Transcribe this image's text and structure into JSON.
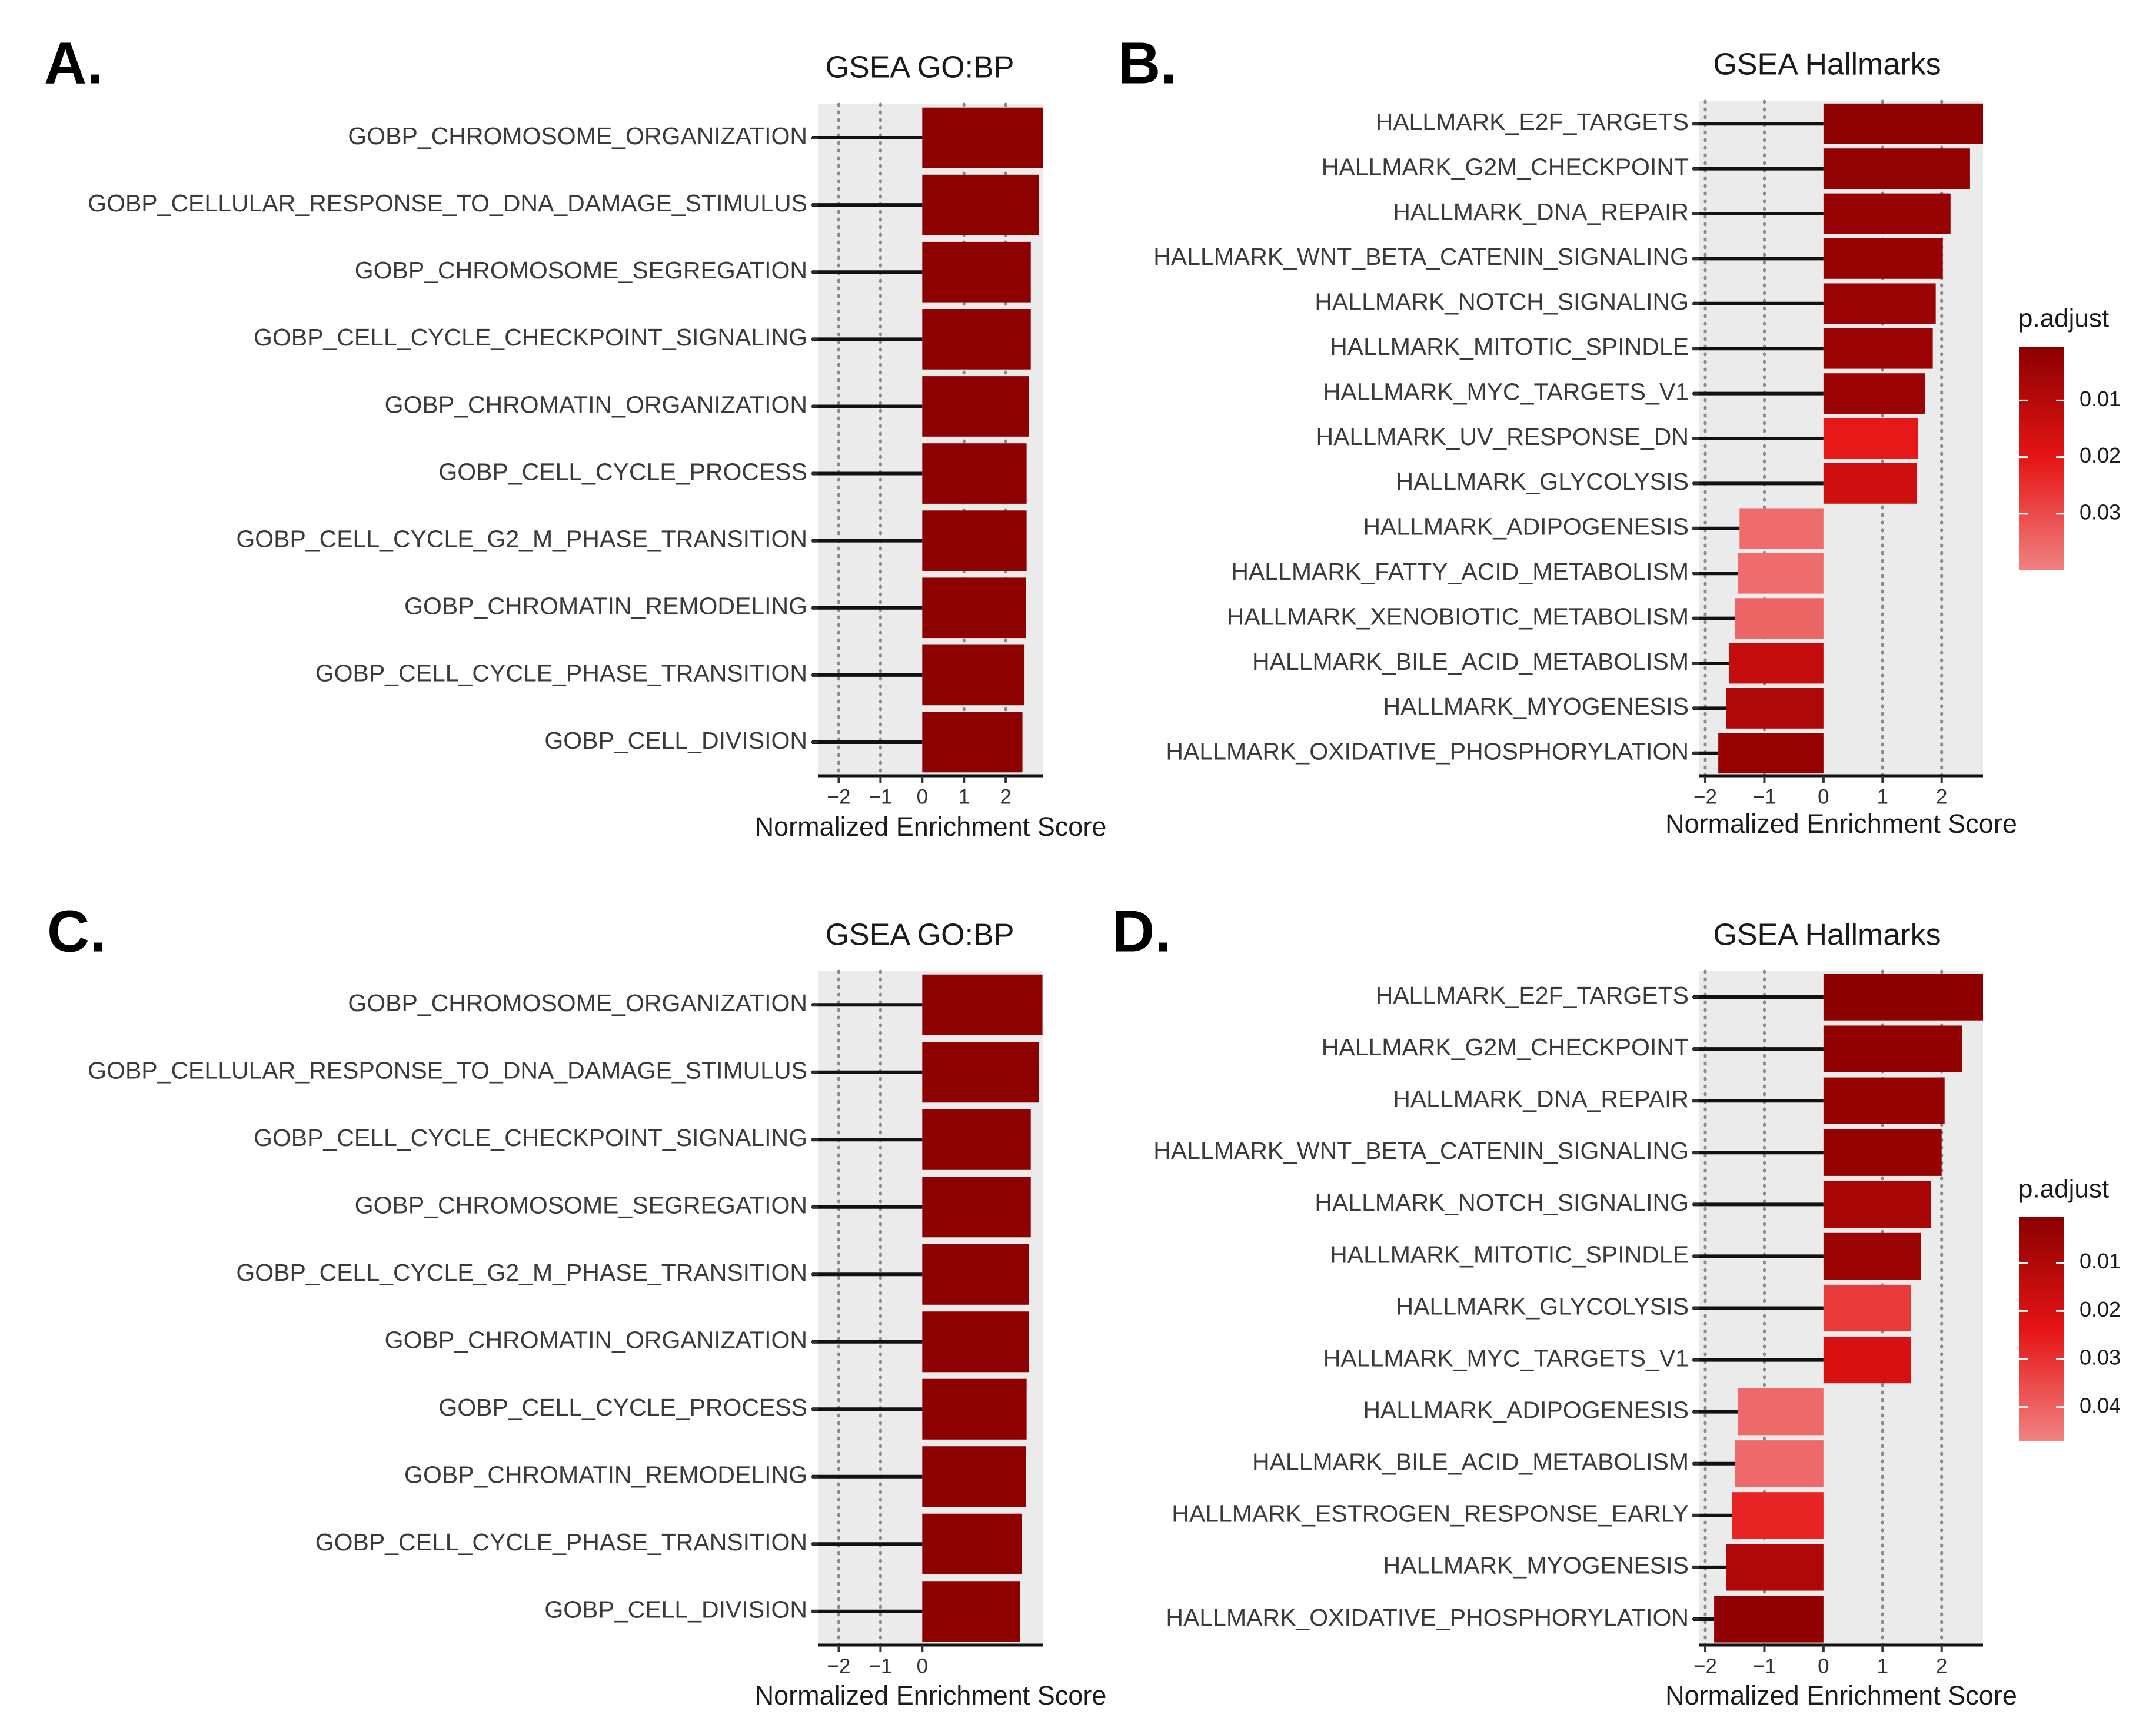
{
  "x_axis_label": "Normalized Enrichment Score",
  "legend_title": "p.adjust",
  "chart_data": [
    {
      "panel": "A.",
      "type": "bar",
      "orientation": "horizontal",
      "title": "GSEA GO:BP",
      "xlabel": "Normalized Enrichment Score",
      "xlim": [
        -2.5,
        2.9
      ],
      "xticks": [
        -2,
        -1,
        0,
        1,
        2
      ],
      "xtick_labels": [
        "−2",
        "−1",
        "0",
        "1",
        "2"
      ],
      "categories": [
        "GOBP_CHROMOSOME_ORGANIZATION",
        "GOBP_CELLULAR_RESPONSE_TO_DNA_DAMAGE_STIMULUS",
        "GOBP_CHROMOSOME_SEGREGATION",
        "GOBP_CELL_CYCLE_CHECKPOINT_SIGNALING",
        "GOBP_CHROMATIN_ORGANIZATION",
        "GOBP_CELL_CYCLE_PROCESS",
        "GOBP_CELL_CYCLE_G2_M_PHASE_TRANSITION",
        "GOBP_CHROMATIN_REMODELING",
        "GOBP_CELL_CYCLE_PHASE_TRANSITION",
        "GOBP_CELL_DIVISION"
      ],
      "values": [
        2.9,
        2.8,
        2.6,
        2.6,
        2.55,
        2.5,
        2.5,
        2.48,
        2.45,
        2.4
      ],
      "p_adjust": [
        0.001,
        0.001,
        0.001,
        0.001,
        0.001,
        0.001,
        0.001,
        0.001,
        0.001,
        0.001
      ]
    },
    {
      "panel": "B.",
      "type": "bar",
      "orientation": "horizontal",
      "title": "GSEA Hallmarks",
      "xlabel": "Normalized Enrichment Score",
      "xlim": [
        -2.1,
        2.7
      ],
      "xticks": [
        -2,
        -1,
        0,
        1,
        2
      ],
      "xtick_labels": [
        "−2",
        "−1",
        "0",
        "1",
        "2"
      ],
      "categories": [
        "HALLMARK_E2F_TARGETS",
        "HALLMARK_G2M_CHECKPOINT",
        "HALLMARK_DNA_REPAIR",
        "HALLMARK_WNT_BETA_CATENIN_SIGNALING",
        "HALLMARK_NOTCH_SIGNALING",
        "HALLMARK_MITOTIC_SPINDLE",
        "HALLMARK_MYC_TARGETS_V1",
        "HALLMARK_UV_RESPONSE_DN",
        "HALLMARK_GLYCOLYSIS",
        "HALLMARK_ADIPOGENESIS",
        "HALLMARK_FATTY_ACID_METABOLISM",
        "HALLMARK_XENOBIOTIC_METABOLISM",
        "HALLMARK_BILE_ACID_METABOLISM",
        "HALLMARK_MYOGENESIS",
        "HALLMARK_OXIDATIVE_PHOSPHORYLATION"
      ],
      "values": [
        2.7,
        2.48,
        2.15,
        2.02,
        1.9,
        1.85,
        1.72,
        1.6,
        1.58,
        -1.42,
        -1.45,
        -1.5,
        -1.6,
        -1.65,
        -1.78
      ],
      "p_adjust": [
        0.001,
        0.002,
        0.003,
        0.003,
        0.004,
        0.004,
        0.004,
        0.021,
        0.015,
        0.036,
        0.036,
        0.035,
        0.013,
        0.008,
        0.003
      ],
      "legend": {
        "ticks": [
          0.01,
          0.02,
          0.03
        ],
        "tick_labels": [
          "0.01",
          "0.02",
          "0.03"
        ],
        "min": 0.0005,
        "max": 0.04
      }
    },
    {
      "panel": "C.",
      "type": "bar",
      "orientation": "horizontal",
      "title": "GSEA GO:BP",
      "xlabel": "Normalized Enrichment Score",
      "xlim": [
        -2.5,
        2.9
      ],
      "xticks": [
        -2,
        -1,
        0
      ],
      "xtick_labels": [
        "−2",
        "−1",
        "0"
      ],
      "categories": [
        "GOBP_CHROMOSOME_ORGANIZATION",
        "GOBP_CELLULAR_RESPONSE_TO_DNA_DAMAGE_STIMULUS",
        "GOBP_CELL_CYCLE_CHECKPOINT_SIGNALING",
        "GOBP_CHROMOSOME_SEGREGATION",
        "GOBP_CELL_CYCLE_G2_M_PHASE_TRANSITION",
        "GOBP_CHROMATIN_ORGANIZATION",
        "GOBP_CELL_CYCLE_PROCESS",
        "GOBP_CHROMATIN_REMODELING",
        "GOBP_CELL_CYCLE_PHASE_TRANSITION",
        "GOBP_CELL_DIVISION"
      ],
      "values": [
        2.88,
        2.8,
        2.6,
        2.6,
        2.55,
        2.55,
        2.5,
        2.48,
        2.38,
        2.35
      ],
      "p_adjust": [
        0.001,
        0.001,
        0.001,
        0.001,
        0.001,
        0.001,
        0.001,
        0.001,
        0.001,
        0.001
      ]
    },
    {
      "panel": "D.",
      "type": "bar",
      "orientation": "horizontal",
      "title": "GSEA Hallmarks",
      "xlabel": "Normalized Enrichment Score",
      "xlim": [
        -2.1,
        2.7
      ],
      "xticks": [
        -2,
        -1,
        0,
        1,
        2
      ],
      "xtick_labels": [
        "−2",
        "−1",
        "0",
        "1",
        "2"
      ],
      "categories": [
        "HALLMARK_E2F_TARGETS",
        "HALLMARK_G2M_CHECKPOINT",
        "HALLMARK_DNA_REPAIR",
        "HALLMARK_WNT_BETA_CATENIN_SIGNALING",
        "HALLMARK_NOTCH_SIGNALING",
        "HALLMARK_MITOTIC_SPINDLE",
        "HALLMARK_GLYCOLYSIS",
        "HALLMARK_MYC_TARGETS_V1",
        "HALLMARK_ADIPOGENESIS",
        "HALLMARK_BILE_ACID_METABOLISM",
        "HALLMARK_ESTROGEN_RESPONSE_EARLY",
        "HALLMARK_MYOGENESIS",
        "HALLMARK_OXIDATIVE_PHOSPHORYLATION"
      ],
      "values": [
        2.7,
        2.35,
        2.05,
        2.0,
        1.82,
        1.65,
        1.48,
        1.48,
        -1.45,
        -1.5,
        -1.55,
        -1.65,
        -1.85
      ],
      "p_adjust": [
        0.001,
        0.002,
        0.003,
        0.003,
        0.008,
        0.005,
        0.032,
        0.02,
        0.042,
        0.042,
        0.027,
        0.01,
        0.002
      ],
      "legend": {
        "ticks": [
          0.01,
          0.02,
          0.03,
          0.04
        ],
        "tick_labels": [
          "0.01",
          "0.02",
          "0.03",
          "0.04"
        ],
        "min": 0.0005,
        "max": 0.047
      }
    }
  ]
}
